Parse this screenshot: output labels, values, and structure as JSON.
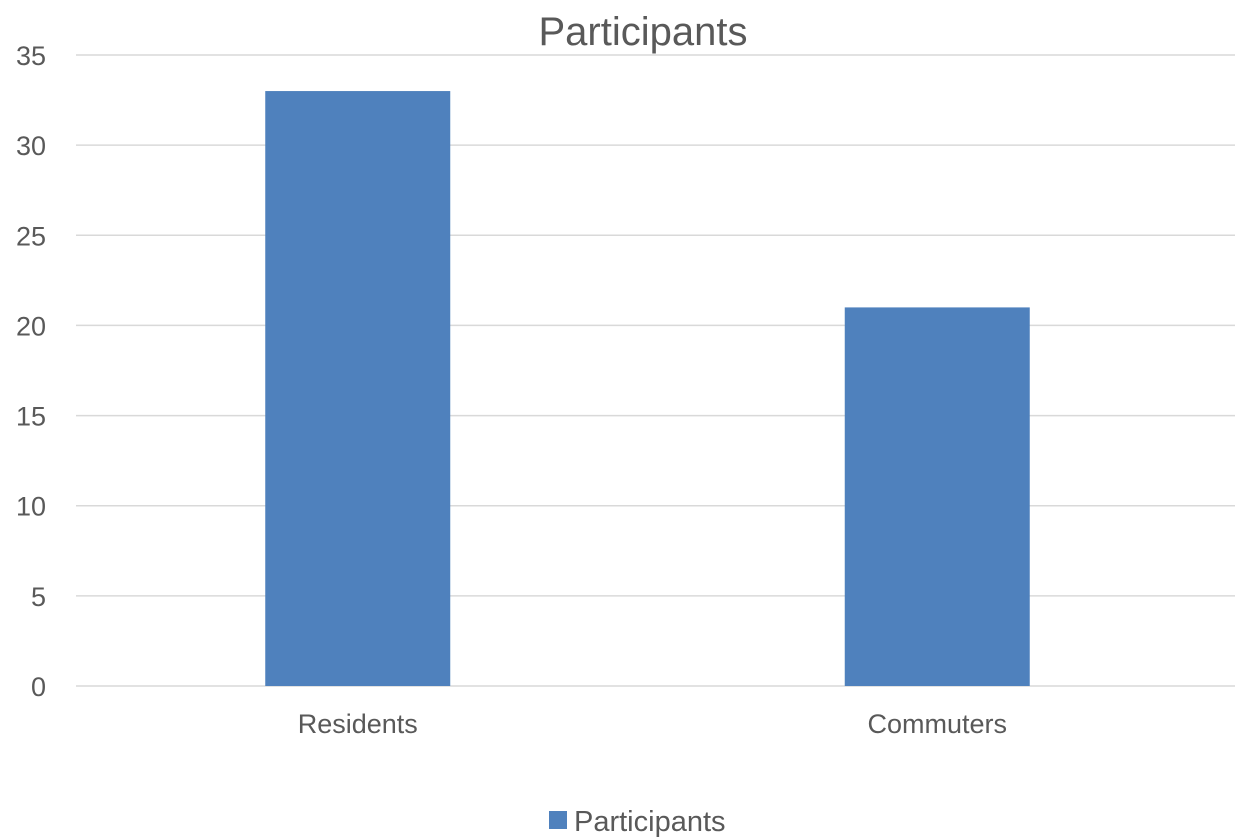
{
  "chart_data": {
    "type": "bar",
    "title": "Participants",
    "xlabel": "",
    "ylabel": "",
    "categories": [
      "Residents",
      "Commuters"
    ],
    "series": [
      {
        "name": "Participants",
        "values": [
          33,
          21
        ],
        "color": "#4f81bd"
      }
    ],
    "ylim": [
      0,
      35
    ],
    "y_ticks": [
      "0",
      "5",
      "10",
      "15",
      "20",
      "25",
      "30",
      "35"
    ],
    "grid": true,
    "legend": "bottom-center"
  }
}
